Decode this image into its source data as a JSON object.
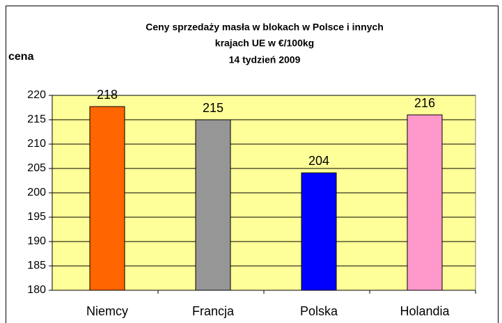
{
  "chart_data": {
    "type": "bar",
    "title": [
      "Ceny sprzedaży masła w blokach w Polsce i  innych",
      "krajach UE w €/100kg",
      "14 tydzień 2009"
    ],
    "ylabel": "cena",
    "categories": [
      "Niemcy",
      "Francja",
      "Polska",
      "Holandia"
    ],
    "values": [
      217.7,
      215,
      204.1,
      216
    ],
    "value_labels": [
      "218",
      "215",
      "204",
      "216"
    ],
    "colors": [
      "#ff6600",
      "#969696",
      "#0000ff",
      "#ff99cc"
    ],
    "ylim": [
      180,
      220
    ],
    "yticks": [
      180,
      185,
      190,
      195,
      200,
      205,
      210,
      215,
      220
    ],
    "grid": true
  }
}
